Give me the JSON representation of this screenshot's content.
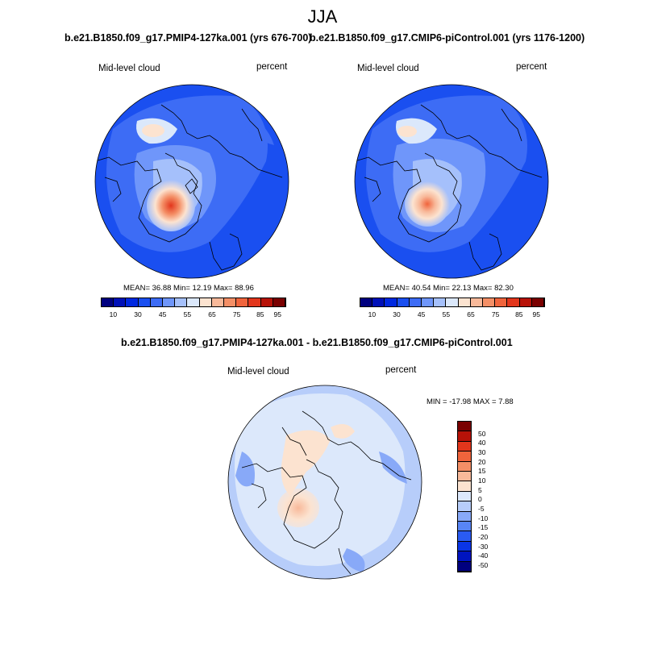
{
  "figure": {
    "title": "JJA"
  },
  "panels": [
    {
      "title": "b.e21.B1850.f09_g17.PMIP4-127ka.001 (yrs 676-700)",
      "left_label": "Mid-level cloud",
      "right_label": "percent",
      "stats": "MEAN=  36.88  Min=  12.19  Max=  88.96"
    },
    {
      "title": "b.e21.B1850.f09_g17.CMIP6-piControl.001 (yrs 1176-1200)",
      "left_label": "Mid-level cloud",
      "right_label": "percent",
      "stats": "MEAN=  40.54  Min=  22.13  Max=  82.30"
    },
    {
      "title": "b.e21.B1850.f09_g17.PMIP4-127ka.001 - b.e21.B1850.f09_g17.CMIP6-piControl.001",
      "left_label": "Mid-level cloud",
      "right_label": "percent",
      "stats": "MIN = -17.98 MAX =   7.88"
    }
  ],
  "colorbar_abs": {
    "colors": [
      "#00007f",
      "#0010b8",
      "#0028e0",
      "#1a4ff0",
      "#3d6cf5",
      "#6f96fa",
      "#a5c0fb",
      "#dbe8fb",
      "#fce3d0",
      "#f8b99a",
      "#f48f66",
      "#f0643c",
      "#e2361c",
      "#b71208",
      "#7a0000"
    ],
    "tick_labels": [
      "10",
      "30",
      "45",
      "55",
      "65",
      "75",
      "85",
      "95"
    ]
  },
  "colorbar_diff": {
    "colors": [
      "#00007f",
      "#0014c0",
      "#0a35e6",
      "#2a5bf2",
      "#5885f6",
      "#88a9f8",
      "#b7cdfa",
      "#dce8fb",
      "#fce3d0",
      "#f8b99a",
      "#f48f66",
      "#f0643c",
      "#e2361c",
      "#b71208",
      "#7a0000"
    ],
    "tick_labels": [
      "50",
      "40",
      "30",
      "20",
      "15",
      "10",
      "5",
      "0",
      "-5",
      "-10",
      "-15",
      "-20",
      "-30",
      "-40",
      "-50"
    ]
  }
}
